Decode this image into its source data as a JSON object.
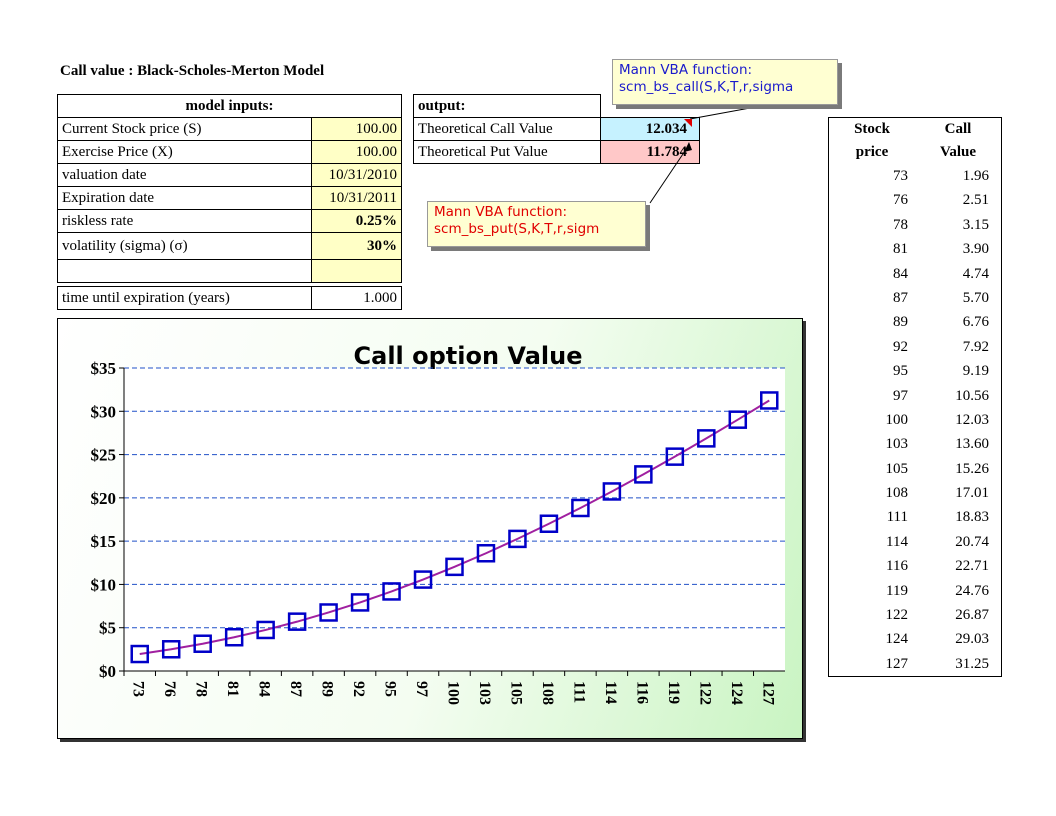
{
  "title": "Call value :  Black-Scholes-Merton Model",
  "inputs": {
    "header": "model inputs:",
    "rows": [
      {
        "label": "Current Stock price (S)",
        "value": "100.00"
      },
      {
        "label": "Exercise Price (X)",
        "value": "100.00"
      },
      {
        "label": "valuation date",
        "value": "10/31/2010"
      },
      {
        "label": "Expiration date",
        "value": "10/31/2011"
      },
      {
        "label": "riskless rate",
        "value": "0.25%"
      },
      {
        "label": "volatility (sigma) (σ)",
        "value": "30%"
      }
    ],
    "time_label": "time until expiration (years)",
    "time_value": "1.000"
  },
  "outputs": {
    "header": "output:",
    "call_label": "Theoretical Call Value",
    "call_value": "12.034",
    "put_label": "Theoretical Put Value",
    "put_value": "11.784"
  },
  "callouts": {
    "call": {
      "line1": "Mann VBA function:",
      "line2": "scm_bs_call(S,K,T,r,sigma"
    },
    "put": {
      "line1": "Mann VBA function:",
      "line2": "scm_bs_put(S,K,T,r,sigm"
    }
  },
  "stock_table": {
    "col1_header": [
      "Stock",
      "price"
    ],
    "col2_header": [
      "Call",
      "Value"
    ],
    "rows": [
      [
        "73",
        "1.96"
      ],
      [
        "76",
        "2.51"
      ],
      [
        "78",
        "3.15"
      ],
      [
        "81",
        "3.90"
      ],
      [
        "84",
        "4.74"
      ],
      [
        "87",
        "5.70"
      ],
      [
        "89",
        "6.76"
      ],
      [
        "92",
        "7.92"
      ],
      [
        "95",
        "9.19"
      ],
      [
        "97",
        "10.56"
      ],
      [
        "100",
        "12.03"
      ],
      [
        "103",
        "13.60"
      ],
      [
        "105",
        "15.26"
      ],
      [
        "108",
        "17.01"
      ],
      [
        "111",
        "18.83"
      ],
      [
        "114",
        "20.74"
      ],
      [
        "116",
        "22.71"
      ],
      [
        "119",
        "24.76"
      ],
      [
        "122",
        "26.87"
      ],
      [
        "124",
        "29.03"
      ],
      [
        "127",
        "31.25"
      ]
    ]
  },
  "chart_data": {
    "type": "line",
    "title": "Call option Value",
    "categories": [
      "73",
      "76",
      "78",
      "81",
      "84",
      "87",
      "89",
      "92",
      "95",
      "97",
      "100",
      "103",
      "105",
      "108",
      "111",
      "114",
      "116",
      "119",
      "122",
      "124",
      "127"
    ],
    "series": [
      {
        "values": [
          1.96,
          2.51,
          3.15,
          3.9,
          4.74,
          5.7,
          6.76,
          7.92,
          9.19,
          10.56,
          12.03,
          13.6,
          15.26,
          17.01,
          18.83,
          20.74,
          22.71,
          24.76,
          26.87,
          29.03,
          31.25
        ],
        "marker": "square",
        "marker_color": "#0000c8",
        "line_color": "#a020a0"
      }
    ],
    "y_ticks": [
      "$0",
      "$5",
      "$10",
      "$15",
      "$20",
      "$25",
      "$30",
      "$35"
    ],
    "ylim": [
      0,
      35
    ],
    "grid": "horizontal-dashed",
    "gridline_color": "#2050c8"
  }
}
